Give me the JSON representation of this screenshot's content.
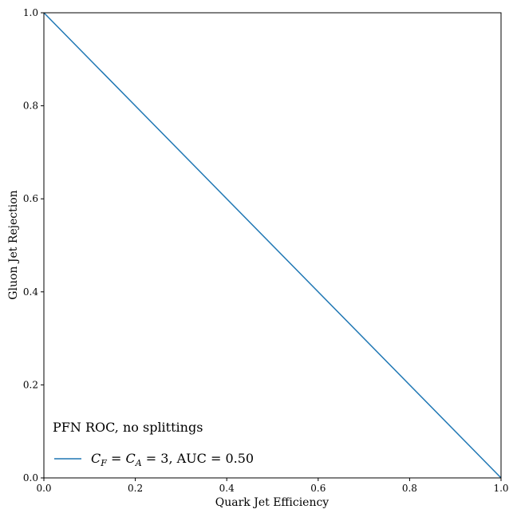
{
  "chart_data": {
    "type": "line",
    "title": "",
    "xlabel": "Quark Jet Efficiency",
    "ylabel": "Gluon Jet Rejection",
    "xlim": [
      0,
      1
    ],
    "ylim": [
      0,
      1
    ],
    "xticks": [
      "0.0",
      "0.2",
      "0.4",
      "0.6",
      "0.8",
      "1.0"
    ],
    "yticks": [
      "0.0",
      "0.2",
      "0.4",
      "0.6",
      "0.8",
      "1.0"
    ],
    "grid": false,
    "legend": {
      "title": "PFN ROC, no splittings",
      "placement": "lower-left"
    },
    "series": [
      {
        "name": "C_F = C_A = 3, AUC = 0.50",
        "color": "#1f77b4",
        "x": [
          0.0,
          1.0
        ],
        "y": [
          1.0,
          0.0
        ]
      }
    ]
  },
  "legend_text": {
    "math_a": "C",
    "sub_a": "F",
    "eq1": " = ",
    "math_b": "C",
    "sub_b": "A",
    "eq2": " = 3",
    "auc": ", AUC = 0.50"
  }
}
